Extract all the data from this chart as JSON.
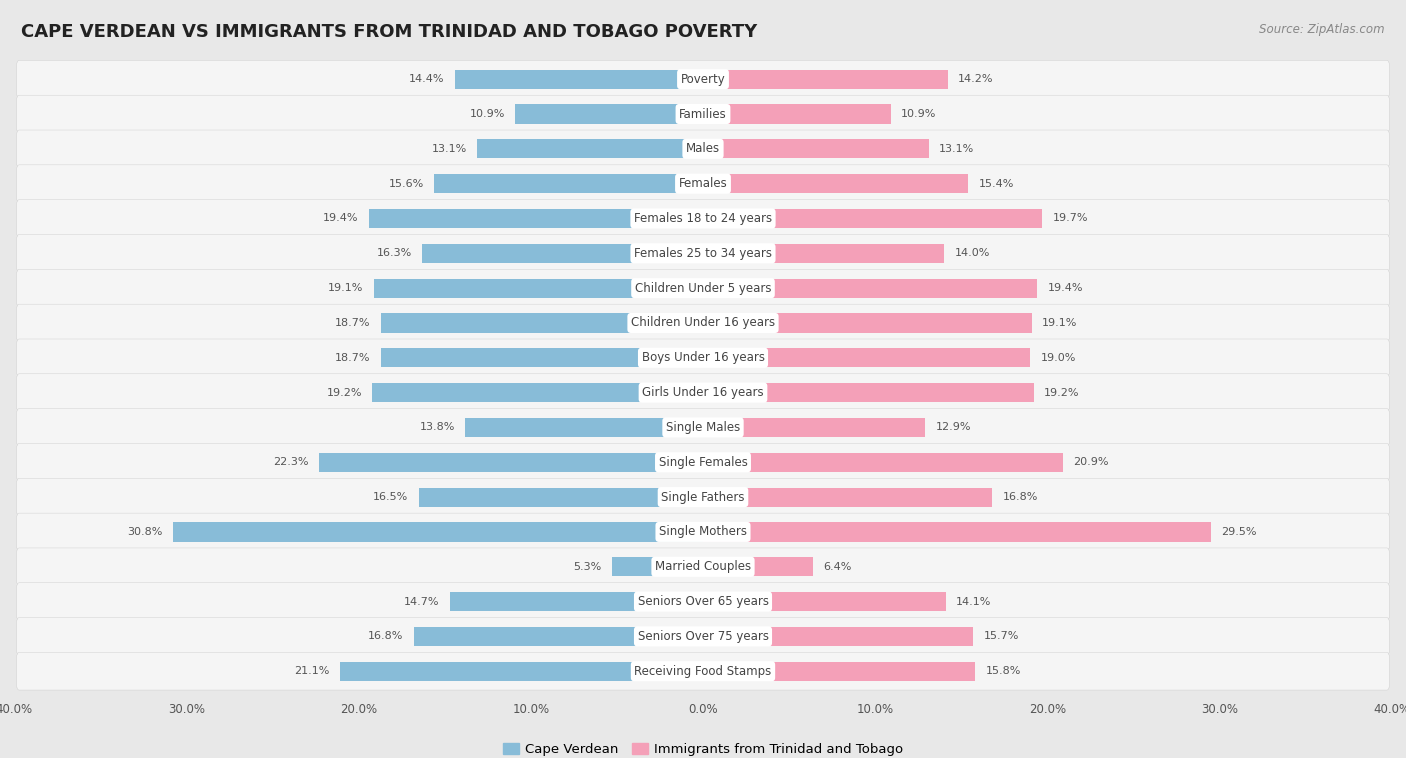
{
  "title": "CAPE VERDEAN VS IMMIGRANTS FROM TRINIDAD AND TOBAGO POVERTY",
  "source": "Source: ZipAtlas.com",
  "categories": [
    "Poverty",
    "Families",
    "Males",
    "Females",
    "Females 18 to 24 years",
    "Females 25 to 34 years",
    "Children Under 5 years",
    "Children Under 16 years",
    "Boys Under 16 years",
    "Girls Under 16 years",
    "Single Males",
    "Single Females",
    "Single Fathers",
    "Single Mothers",
    "Married Couples",
    "Seniors Over 65 years",
    "Seniors Over 75 years",
    "Receiving Food Stamps"
  ],
  "left_values": [
    14.4,
    10.9,
    13.1,
    15.6,
    19.4,
    16.3,
    19.1,
    18.7,
    18.7,
    19.2,
    13.8,
    22.3,
    16.5,
    30.8,
    5.3,
    14.7,
    16.8,
    21.1
  ],
  "right_values": [
    14.2,
    10.9,
    13.1,
    15.4,
    19.7,
    14.0,
    19.4,
    19.1,
    19.0,
    19.2,
    12.9,
    20.9,
    16.8,
    29.5,
    6.4,
    14.1,
    15.7,
    15.8
  ],
  "left_color": "#88bcd8",
  "right_color": "#f4a0b8",
  "background_color": "#e8e8e8",
  "row_bg_color": "#f5f5f5",
  "label_bg_color": "#ffffff",
  "label_text_color": "#444444",
  "value_text_color": "#555555",
  "xlim": 40.0,
  "legend_left": "Cape Verdean",
  "legend_right": "Immigrants from Trinidad and Tobago"
}
